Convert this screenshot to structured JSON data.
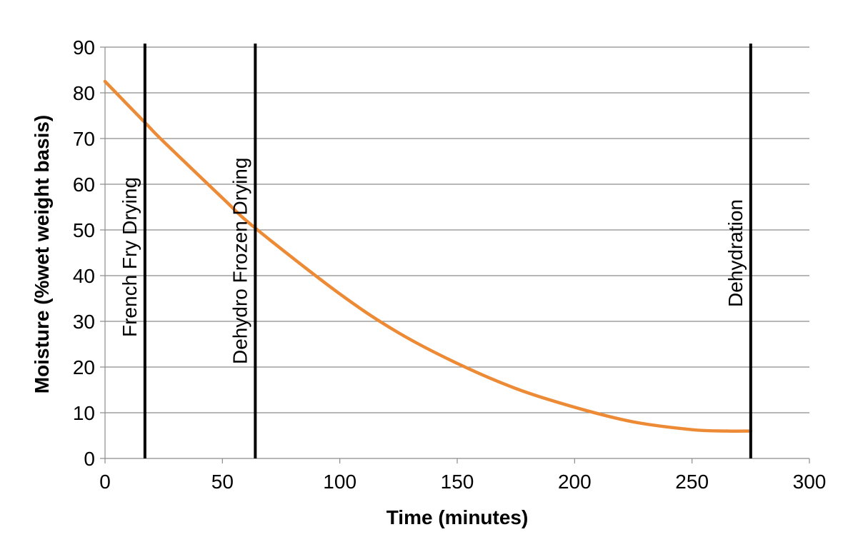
{
  "chart_data": {
    "type": "line",
    "title": "",
    "xlabel": "Time (minutes)",
    "ylabel": "Moisture  (%wet weight basis)",
    "xlim": [
      0,
      300
    ],
    "ylim": [
      0,
      90
    ],
    "xticks": [
      0,
      50,
      100,
      150,
      200,
      250,
      300
    ],
    "yticks": [
      0,
      10,
      20,
      30,
      40,
      50,
      60,
      70,
      80,
      90
    ],
    "grid": "horizontal",
    "legend": "none",
    "series": [
      {
        "color": "#ed8a35",
        "x": [
          0,
          17,
          25,
          50,
          64,
          100,
          125,
          150,
          175,
          200,
          225,
          250,
          265,
          275
        ],
        "y": [
          82.5,
          73.5,
          69.3,
          57.0,
          50.4,
          36.0,
          27.5,
          20.8,
          15.3,
          11.2,
          8.0,
          6.3,
          6.0,
          6.0
        ]
      }
    ],
    "markers": [
      {
        "x": 17,
        "label": "French Fry Drying"
      },
      {
        "x": 64,
        "label": "Dehydro Frozen Drying"
      },
      {
        "x": 275,
        "label": "Dehydration"
      }
    ]
  }
}
